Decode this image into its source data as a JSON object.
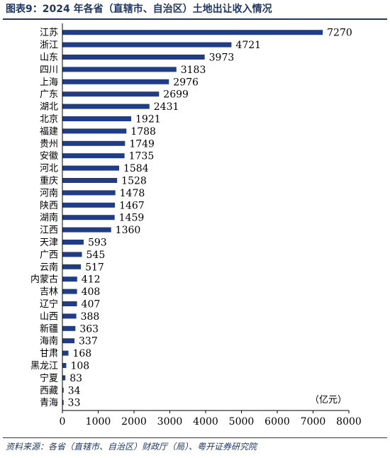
{
  "figure": {
    "title": "图表9：2024 年各省（直辖市、自治区）土地出让收入情况",
    "source": "资料来源：各省（直辖市、自治区）财政厅（局）、粤开证券研究院"
  },
  "chart_data": {
    "type": "bar",
    "orientation": "horizontal",
    "categories": [
      "江苏",
      "浙江",
      "山东",
      "四川",
      "上海",
      "广东",
      "湖北",
      "北京",
      "福建",
      "贵州",
      "安徽",
      "河北",
      "重庆",
      "河南",
      "陕西",
      "湖南",
      "江西",
      "天津",
      "广西",
      "云南",
      "内蒙古",
      "吉林",
      "辽宁",
      "山西",
      "新疆",
      "海南",
      "甘肃",
      "黑龙江",
      "宁夏",
      "西藏",
      "青海"
    ],
    "values": [
      7270,
      4721,
      3973,
      3183,
      2976,
      2699,
      2431,
      1921,
      1788,
      1749,
      1735,
      1584,
      1528,
      1478,
      1467,
      1459,
      1360,
      593,
      545,
      517,
      412,
      408,
      407,
      388,
      363,
      337,
      168,
      108,
      83,
      34,
      33
    ],
    "unit_label": "（亿元）",
    "xlim": [
      0,
      8000
    ],
    "xticks": [
      0,
      1000,
      2000,
      3000,
      4000,
      5000,
      6000,
      7000,
      8000
    ],
    "grid": false,
    "legend": "none",
    "bar_color": "#1f3c88"
  }
}
